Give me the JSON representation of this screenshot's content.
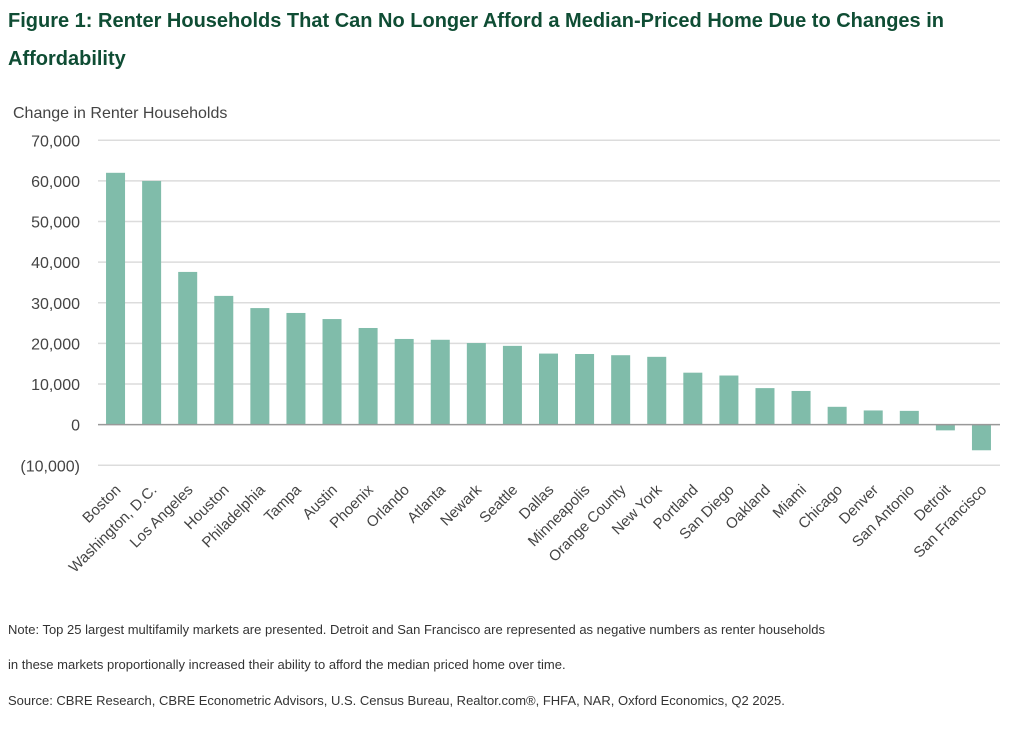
{
  "title": "Figure 1: Renter Households That Can No Longer Afford a Median-Priced Home Due to Changes in Affordability",
  "note_line1": "Note: Top 25 largest multifamily markets are presented. Detroit and San Francisco are represented as negative numbers as renter households",
  "note_line2": "in these markets proportionally increased their ability to afford the median priced home over time.",
  "source": "Source: CBRE Research, CBRE Econometric Advisors, U.S. Census Bureau, Realtor.com®, FHFA, NAR, Oxford Economics, Q2 2025.",
  "chart_data": {
    "type": "bar",
    "title": "Figure 1: Renter Households That Can No Longer Afford a Median-Priced Home Due to Changes in Affordability",
    "ylabel": "Change in Renter Households",
    "xlabel": "",
    "ylim": [
      -10000,
      70000
    ],
    "yticks": [
      70000,
      60000,
      50000,
      40000,
      30000,
      20000,
      10000,
      0,
      -10000
    ],
    "ytick_labels": [
      "70,000",
      "60,000",
      "50,000",
      "40,000",
      "30,000",
      "20,000",
      "10,000",
      "0",
      "(10,000)"
    ],
    "grid": true,
    "bar_color": "#80bcaa",
    "categories": [
      "Boston",
      "Washington, D.C.",
      "Los Angeles",
      "Houston",
      "Philadelphia",
      "Tampa",
      "Austin",
      "Phoenix",
      "Orlando",
      "Atlanta",
      "Newark",
      "Seattle",
      "Dallas",
      "Minneapolis",
      "Orange County",
      "New York",
      "Portland",
      "San Diego",
      "Oakland",
      "Miami",
      "Chicago",
      "Denver",
      "San Antonio",
      "Detroit",
      "San Francisco"
    ],
    "values": [
      62000,
      60000,
      37600,
      31700,
      28700,
      27500,
      26000,
      23800,
      21100,
      20900,
      20100,
      19400,
      17500,
      17400,
      17100,
      16700,
      12800,
      12100,
      9000,
      8300,
      4400,
      3500,
      3400,
      -1400,
      -6300
    ]
  }
}
